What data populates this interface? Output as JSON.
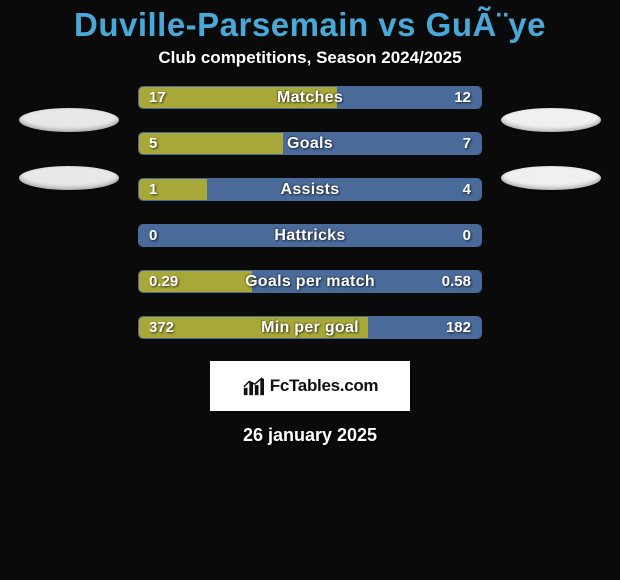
{
  "title": "Duville-Parsemain vs GuÃ¨ye",
  "title_color": "#4aa8d8",
  "title_fontsize": 33,
  "subtitle": "Club competitions, Season 2024/2025",
  "subtitle_fontsize": 17,
  "background_color": "#0a0a0a",
  "oval_left_color": "#e8e8e8",
  "oval_right_color": "#f0f0f0",
  "bar_track_color": "#1a2a4a",
  "bar_border_color": "#4a6a9a",
  "left_fill_color": "#a8a838",
  "right_fill_color": "#4a6a9a",
  "label_fontsize": 16,
  "value_fontsize": 15,
  "bars": [
    {
      "label": "Matches",
      "left": "17",
      "right": "12",
      "left_pct": 58,
      "right_pct": 42,
      "left_color": "#a8a838",
      "right_color": "#4a6a9a"
    },
    {
      "label": "Goals",
      "left": "5",
      "right": "7",
      "left_pct": 42,
      "right_pct": 58,
      "left_color": "#a8a838",
      "right_color": "#4a6a9a"
    },
    {
      "label": "Assists",
      "left": "1",
      "right": "4",
      "left_pct": 20,
      "right_pct": 80,
      "left_color": "#a8a838",
      "right_color": "#4a6a9a"
    },
    {
      "label": "Hattricks",
      "left": "0",
      "right": "0",
      "left_pct": 50,
      "right_pct": 50,
      "left_color": "#4a6a9a",
      "right_color": "#4a6a9a"
    },
    {
      "label": "Goals per match",
      "left": "0.29",
      "right": "0.58",
      "left_pct": 33,
      "right_pct": 67,
      "left_color": "#a8a838",
      "right_color": "#4a6a9a"
    },
    {
      "label": "Min per goal",
      "left": "372",
      "right": "182",
      "left_pct": 67,
      "right_pct": 33,
      "left_color": "#a8a838",
      "right_color": "#4a6a9a"
    }
  ],
  "logo_text": "FcTables.com",
  "logo_text_color": "#111111",
  "logo_bg": "#ffffff",
  "date": "26 january 2025",
  "date_fontsize": 18
}
